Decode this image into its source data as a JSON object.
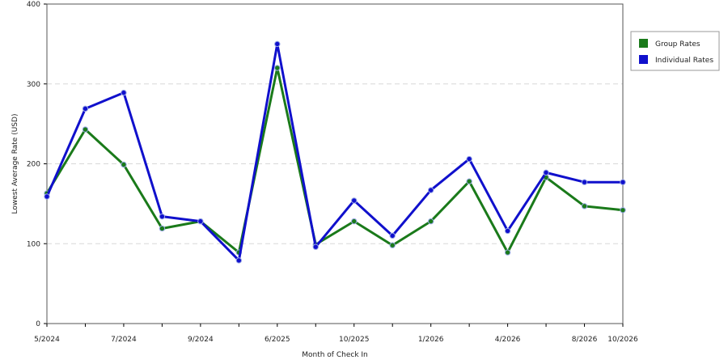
{
  "chart_data": {
    "type": "line",
    "title": "",
    "xlabel": "Month of Check In",
    "ylabel": "Lowest Average Rate (USD)",
    "ylim": [
      0,
      400
    ],
    "y_ticks": [
      "0",
      "100",
      "200",
      "300",
      "400"
    ],
    "x_tick_labels": [
      {
        "index": 0,
        "label": "5/2024"
      },
      {
        "index": 2,
        "label": "7/2024"
      },
      {
        "index": 4,
        "label": "9/2024"
      },
      {
        "index": 6,
        "label": "6/2025"
      },
      {
        "index": 8,
        "label": "10/2025"
      },
      {
        "index": 10,
        "label": "1/2026"
      },
      {
        "index": 12,
        "label": "4/2026"
      },
      {
        "index": 14,
        "label": "8/2026"
      },
      {
        "index": 15,
        "label": "10/2026"
      }
    ],
    "grid": true,
    "legend_position": "top-right",
    "series": [
      {
        "name": "Group Rates",
        "color": "#1a7a1a",
        "values": [
          163,
          243,
          199,
          119,
          128,
          89,
          320,
          99,
          128,
          98,
          128,
          178,
          89,
          183,
          147,
          142
        ]
      },
      {
        "name": "Individual Rates",
        "color": "#1010cc",
        "values": [
          159,
          269,
          289,
          134,
          128,
          79,
          350,
          96,
          154,
          110,
          167,
          206,
          116,
          189,
          177,
          177
        ]
      }
    ]
  }
}
